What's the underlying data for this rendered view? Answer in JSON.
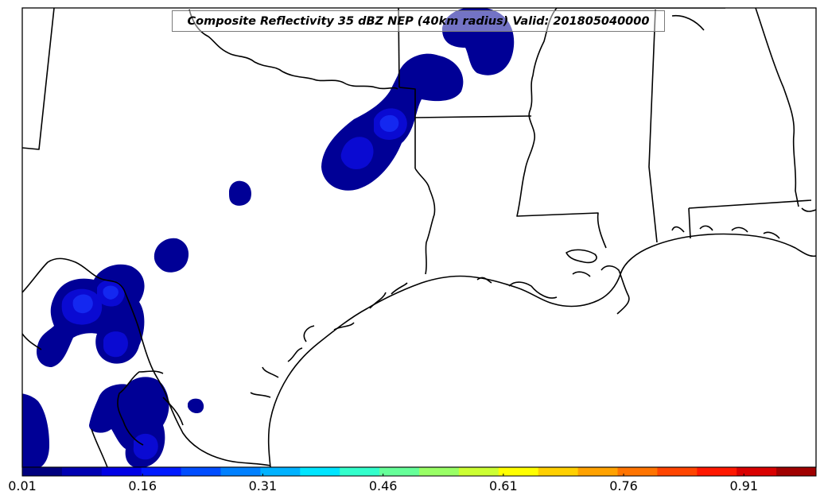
{
  "title": "Composite Reflectivity 35 dBZ NEP (40km radius) Valid: 201805040000",
  "colorbar": {
    "tick_labels": [
      "0.01",
      "0.16",
      "0.31",
      "0.46",
      "0.61",
      "0.76",
      "0.91"
    ],
    "tick_values": [
      0.01,
      0.16,
      0.31,
      0.46,
      0.61,
      0.76,
      0.91
    ],
    "range": [
      0.01,
      1.0
    ],
    "colors": [
      "#00007f",
      "#0000b2",
      "#0000e5",
      "#001aff",
      "#004dff",
      "#0080ff",
      "#00b2ff",
      "#00e5ff",
      "#33ffcc",
      "#66ff99",
      "#99ff66",
      "#ccff33",
      "#ffff00",
      "#ffd000",
      "#ffa200",
      "#ff7400",
      "#ff4500",
      "#ff1800",
      "#d90000",
      "#a00000"
    ]
  },
  "map": {
    "region": "Southern United States / Gulf of Mexico coast",
    "probability_colors": {
      "low": "#000096",
      "mid": "#0a0ad2",
      "high": "#1428f0"
    }
  }
}
